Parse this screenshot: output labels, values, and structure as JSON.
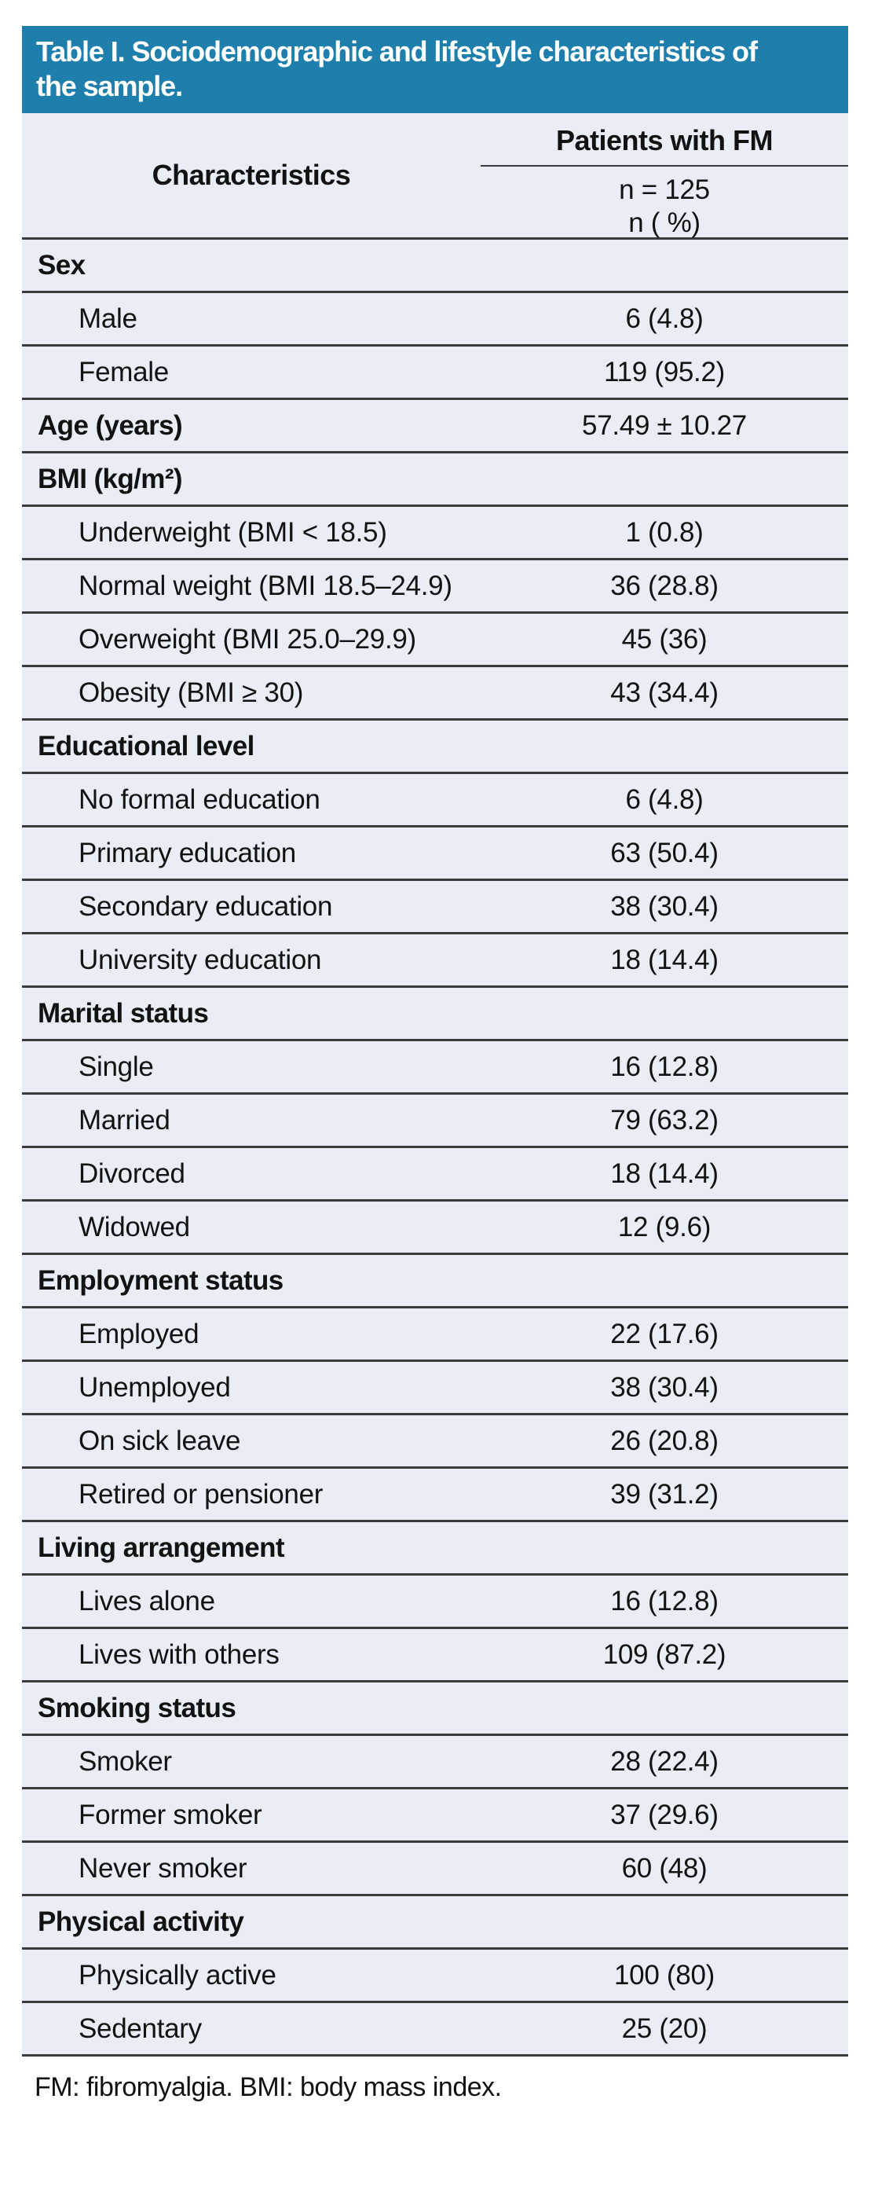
{
  "title": {
    "line1": "Table I. Sociodemographic and lifestyle characteristics of",
    "line2": "the sample."
  },
  "header": {
    "characteristics_label": "Characteristics",
    "group_label": "Patients with FM",
    "n_label": "n = 125",
    "n_pct_label": "n ( %)"
  },
  "rows": [
    {
      "type": "section",
      "label": "Sex",
      "value": ""
    },
    {
      "type": "item",
      "label": "Male",
      "value": "6 (4.8)"
    },
    {
      "type": "item",
      "label": "Female",
      "value": "119 (95.2)"
    },
    {
      "type": "section",
      "label": "Age (years)",
      "value": "57.49 ± 10.27"
    },
    {
      "type": "section",
      "label": "BMI (kg/m²)",
      "value": ""
    },
    {
      "type": "item",
      "label": "Underweight (BMI < 18.5)",
      "value": "1 (0.8)"
    },
    {
      "type": "item",
      "label": "Normal weight (BMI 18.5–24.9)",
      "value": "36 (28.8)"
    },
    {
      "type": "item",
      "label": "Overweight (BMI 25.0–29.9)",
      "value": "45 (36)"
    },
    {
      "type": "item",
      "label": "Obesity (BMI ≥ 30)",
      "value": "43 (34.4)"
    },
    {
      "type": "section",
      "label": "Educational level",
      "value": ""
    },
    {
      "type": "item",
      "label": "No formal education",
      "value": "6 (4.8)"
    },
    {
      "type": "item",
      "label": "Primary education",
      "value": "63 (50.4)"
    },
    {
      "type": "item",
      "label": "Secondary education",
      "value": "38 (30.4)"
    },
    {
      "type": "item",
      "label": "University education",
      "value": "18 (14.4)"
    },
    {
      "type": "section",
      "label": "Marital status",
      "value": ""
    },
    {
      "type": "item",
      "label": "Single",
      "value": "16 (12.8)"
    },
    {
      "type": "item",
      "label": "Married",
      "value": "79 (63.2)"
    },
    {
      "type": "item",
      "label": "Divorced",
      "value": "18 (14.4)"
    },
    {
      "type": "item",
      "label": "Widowed",
      "value": "12 (9.6)"
    },
    {
      "type": "section",
      "label": "Employment status",
      "value": ""
    },
    {
      "type": "item",
      "label": "Employed",
      "value": "22 (17.6)"
    },
    {
      "type": "item",
      "label": "Unemployed",
      "value": "38 (30.4)"
    },
    {
      "type": "item",
      "label": "On sick leave",
      "value": "26 (20.8)"
    },
    {
      "type": "item",
      "label": "Retired or pensioner",
      "value": "39 (31.2)"
    },
    {
      "type": "section",
      "label": "Living arrangement",
      "value": ""
    },
    {
      "type": "item",
      "label": "Lives alone",
      "value": "16 (12.8)"
    },
    {
      "type": "item",
      "label": "Lives with others",
      "value": "109 (87.2)"
    },
    {
      "type": "section",
      "label": "Smoking status",
      "value": ""
    },
    {
      "type": "item",
      "label": "Smoker",
      "value": "28 (22.4)"
    },
    {
      "type": "item",
      "label": "Former smoker",
      "value": "37 (29.6)"
    },
    {
      "type": "item",
      "label": "Never smoker",
      "value": "60 (48)"
    },
    {
      "type": "section",
      "label": "Physical activity",
      "value": ""
    },
    {
      "type": "item",
      "label": "Physically active",
      "value": "100 (80)"
    },
    {
      "type": "item",
      "label": "Sedentary",
      "value": "25 (20)"
    }
  ],
  "footnote": "FM: fibromyalgia. BMI: body mass index.",
  "colors": {
    "title_bg": "#1E7EAC",
    "row_bg": "#E9EDF6",
    "rule": "#3B3B3B"
  }
}
